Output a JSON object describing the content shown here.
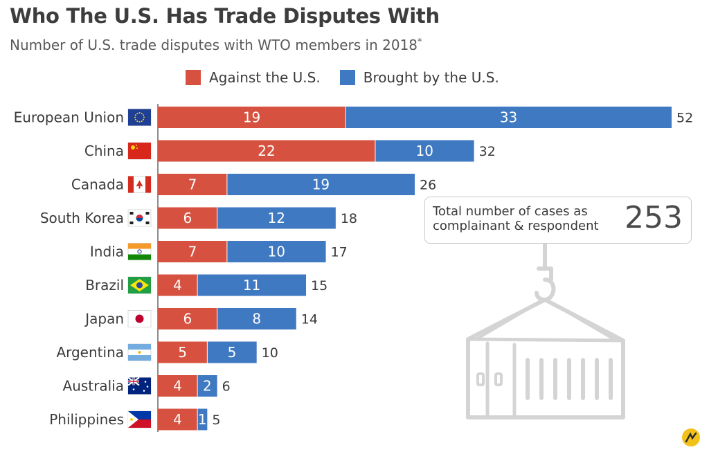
{
  "header": {
    "title": "Who The U.S. Has Trade Disputes With",
    "subtitle": "Number of U.S. trade disputes with WTO members in 2018",
    "subtitle_mark": "*"
  },
  "legend": [
    {
      "label": "Against the U.S.",
      "color": "#d6513f"
    },
    {
      "label": "Brought by the U.S.",
      "color": "#3f79c1"
    }
  ],
  "total": {
    "label_line1": "Total number of cases as",
    "label_line2": "complainant & respondent",
    "value": "253"
  },
  "colors": {
    "against": "#d6513f",
    "brought": "#3f79c1",
    "text": "#3a3a3a",
    "illustration": "#d4d4d4",
    "axis": "#666666"
  },
  "icons": [
    "hook-icon",
    "shipping-container-icon",
    "statista-logo-icon"
  ],
  "chart_data": {
    "type": "bar",
    "orientation": "horizontal",
    "stacked": true,
    "title": "Who The U.S. Has Trade Disputes With",
    "subtitle": "Number of U.S. trade disputes with WTO members in 2018*",
    "categories": [
      "European Union",
      "China",
      "Canada",
      "South Korea",
      "India",
      "Brazil",
      "Japan",
      "Argentina",
      "Australia",
      "Philippines"
    ],
    "category_flags": [
      "eu",
      "cn",
      "ca",
      "kr",
      "in",
      "br",
      "jp",
      "ar",
      "au",
      "ph"
    ],
    "series": [
      {
        "name": "Against the U.S.",
        "values": [
          19,
          22,
          7,
          6,
          7,
          4,
          6,
          5,
          4,
          4
        ]
      },
      {
        "name": "Brought by the U.S.",
        "values": [
          33,
          10,
          19,
          12,
          10,
          11,
          8,
          5,
          2,
          1
        ]
      }
    ],
    "totals": [
      52,
      32,
      26,
      18,
      17,
      15,
      14,
      10,
      6,
      5
    ],
    "xlim": [
      0,
      52
    ],
    "grid": false,
    "legend_position": "top"
  }
}
